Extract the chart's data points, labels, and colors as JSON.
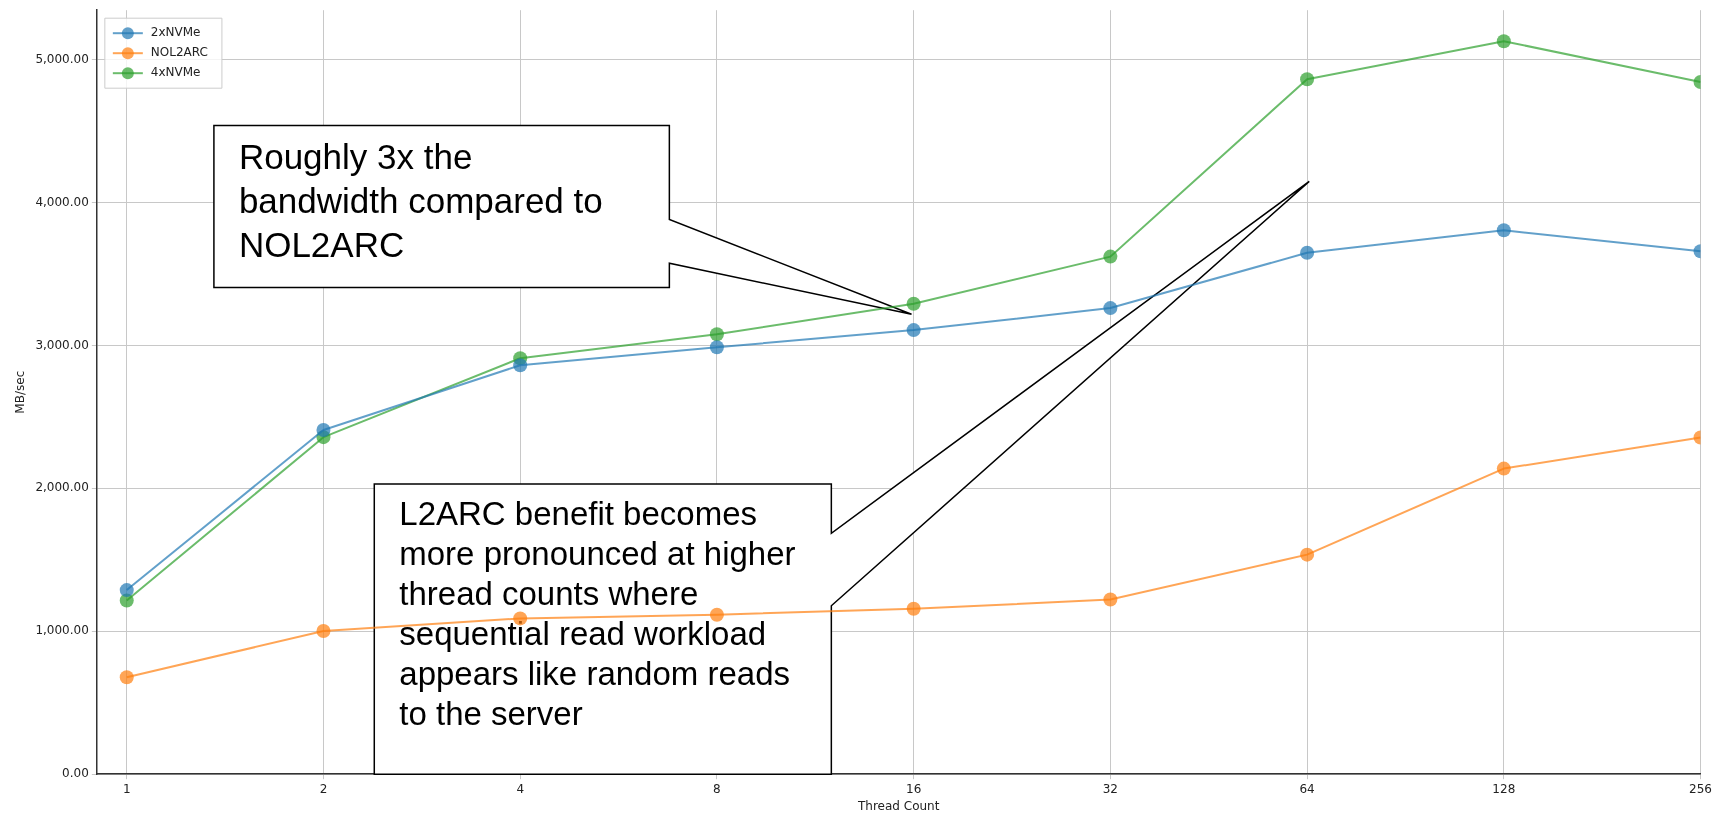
{
  "chart_data": {
    "type": "line",
    "xlabel": "Thread Count",
    "ylabel": "MB/sec",
    "x": [
      1,
      2,
      4,
      8,
      16,
      32,
      64,
      128,
      256
    ],
    "series": [
      {
        "name": "2xNVMe",
        "color": "#1f77b4",
        "values": [
          1288,
          2408,
          2861,
          2987,
          3107,
          3261,
          3648,
          3805,
          3659
        ]
      },
      {
        "name": "NOL2ARC",
        "color": "#ff7f0e",
        "values": [
          678,
          1002,
          1090,
          1116,
          1157,
          1222,
          1536,
          2138,
          2356
        ]
      },
      {
        "name": "4xNVMe",
        "color": "#2ca02c",
        "values": [
          1215,
          2358,
          2910,
          3078,
          3291,
          3621,
          4862,
          5128,
          4843
        ]
      }
    ],
    "xlim": [
      0.9,
      256
    ],
    "ylim": [
      0,
      5345
    ],
    "xticks": [
      1,
      2,
      4,
      8,
      16,
      32,
      64,
      128,
      256
    ],
    "yticks": [
      {
        "value": 0,
        "label": "0.00"
      },
      {
        "value": 1000,
        "label": "1,000.00"
      },
      {
        "value": 2000,
        "label": "2,000.00"
      },
      {
        "value": 3000,
        "label": "3,000.00"
      },
      {
        "value": 4000,
        "label": "4,000.00"
      },
      {
        "value": 5000,
        "label": "5,000.00"
      }
    ],
    "log": "x",
    "grid": true,
    "legend": "top left",
    "marker": "circle",
    "line_style": "solid",
    "annotations": [
      "Roughly 3x the bandwidth compared to NOL2ARC",
      "L2ARC benefit becomes more pronounced at higher thread counts where sequential read workload appears like random reads to the server"
    ]
  }
}
